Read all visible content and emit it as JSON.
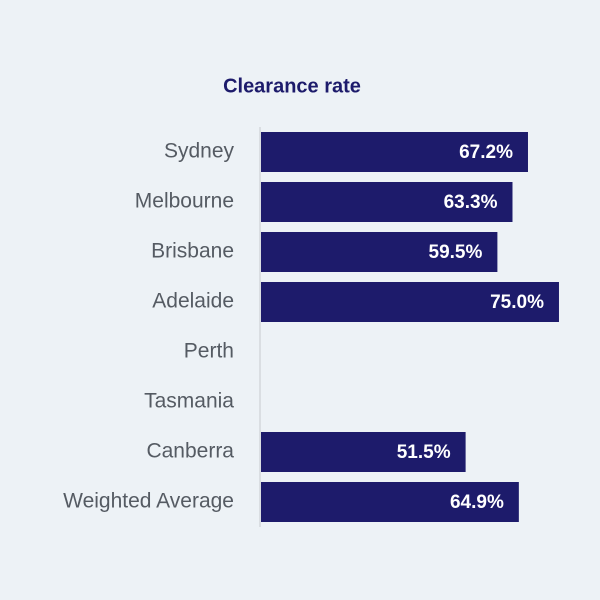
{
  "chart_data": {
    "type": "barh",
    "title": "Clearance rate",
    "categories": [
      "Sydney",
      "Melbourne",
      "Brisbane",
      "Adelaide",
      "Perth",
      "Tasmania",
      "Canberra",
      "Weighted Average"
    ],
    "values": [
      67.2,
      63.3,
      59.5,
      75.0,
      null,
      null,
      51.5,
      64.9
    ],
    "value_labels": [
      "67.2%",
      "63.3%",
      "59.5%",
      "75.0%",
      null,
      null,
      "51.5%",
      "64.9%"
    ],
    "color": "#1d1b6b"
  }
}
